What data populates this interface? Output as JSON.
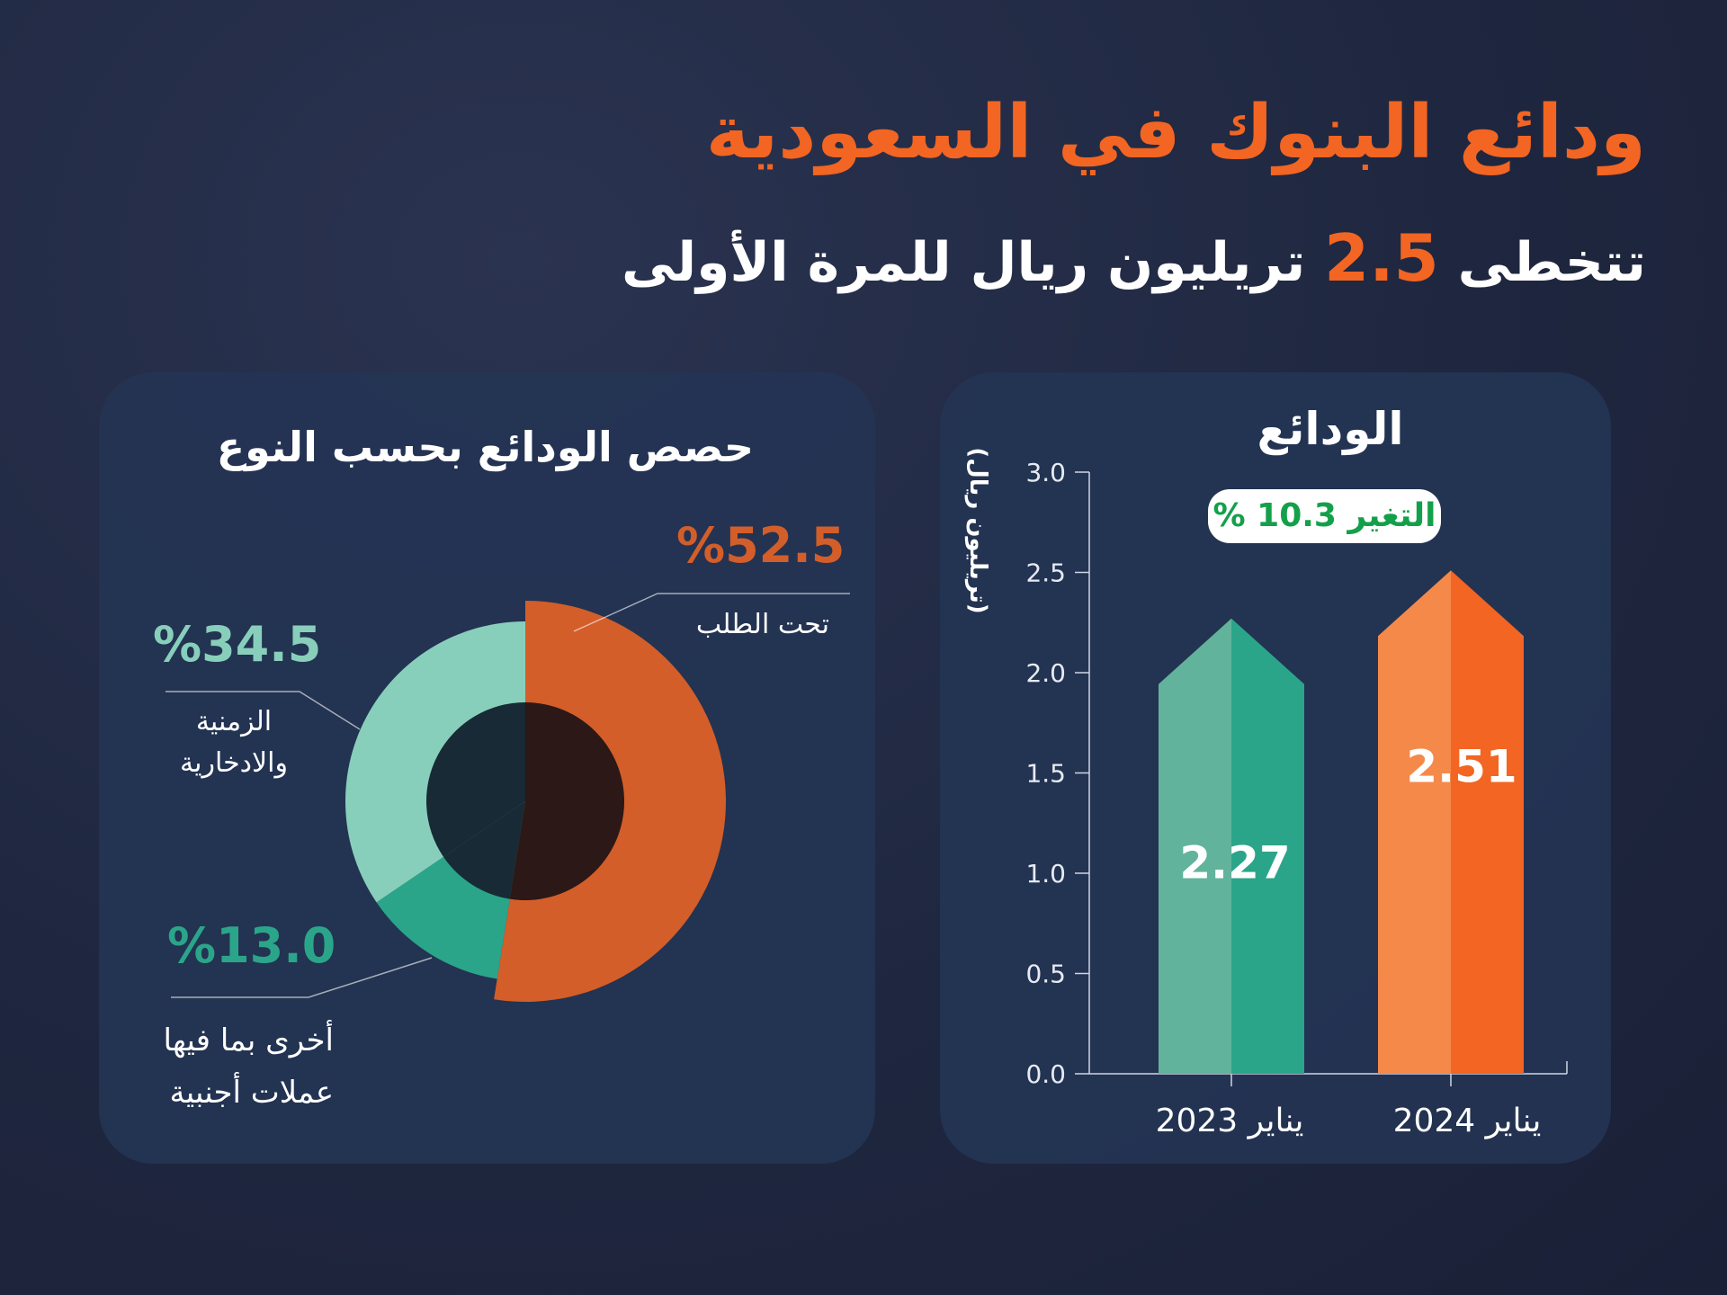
{
  "header": {
    "title": "ودائع البنوك في السعودية",
    "subtitle_pre": "تتخطى",
    "subtitle_value": "2.5",
    "subtitle_post": "تريليون ريال للمرة الأولى"
  },
  "colors": {
    "background": "#1f2740",
    "card": "#243454",
    "accent_orange": "#f26522",
    "donut_orange": "#d35e29",
    "teal_light": "#88cfbb",
    "teal_dark": "#2ba589",
    "badge_text": "#14a04a"
  },
  "chart_data": [
    {
      "type": "pie",
      "title": "حصص الودائع بحسب النوع",
      "variant": "donut",
      "slices": [
        {
          "label": "تحت الطلب",
          "value": 52.5,
          "value_label": "%52.5",
          "color": "#d35e29"
        },
        {
          "label": "أخرى بما فيها عملات أجنبية",
          "label_lines": [
            "أخرى بما فيها",
            "عملات أجنبية"
          ],
          "value": 13.0,
          "value_label": "%13.0",
          "color": "#2ba589"
        },
        {
          "label": "الزمنية والادخارية",
          "label_lines": [
            "الزمنية",
            "والادخارية"
          ],
          "value": 34.5,
          "value_label": "%34.5",
          "color": "#88cfbb"
        }
      ]
    },
    {
      "type": "bar",
      "title": "الودائع",
      "ylabel": "(تريليون ريال)",
      "ylim": [
        0,
        3.0
      ],
      "yticks": [
        "0.0",
        "0.5",
        "1.0",
        "1.5",
        "2.0",
        "2.5",
        "3.0"
      ],
      "categories": [
        "يناير 2023",
        "يناير 2024"
      ],
      "values": [
        2.27,
        2.51
      ],
      "value_labels": [
        "2.27",
        "2.51"
      ],
      "bar_colors": [
        [
          "#62b39b",
          "#2ba589"
        ],
        [
          "#f5894a",
          "#f26522"
        ]
      ],
      "annotation": "التغير 10.3 %",
      "grid": false
    }
  ]
}
